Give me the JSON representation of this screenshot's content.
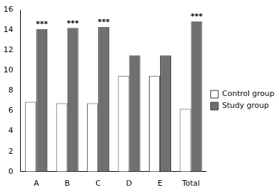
{
  "chart_data": {
    "type": "bar",
    "categories": [
      "A",
      "B",
      "C",
      "D",
      "E",
      "Total"
    ],
    "series": [
      {
        "name": "Control group",
        "color": "#ffffff",
        "values": [
          6.9,
          6.75,
          6.75,
          9.45,
          9.45,
          6.2
        ]
      },
      {
        "name": "Study group",
        "color": "#707070",
        "values": [
          14.1,
          14.2,
          14.3,
          11.5,
          11.5,
          14.85
        ]
      }
    ],
    "ylim": [
      0,
      16
    ],
    "yticks": [
      0,
      2,
      4,
      6,
      8,
      10,
      12,
      14,
      16
    ],
    "grid": false,
    "legend": "right",
    "annotations": [
      {
        "category": "A",
        "series": "Study group",
        "text": "***"
      },
      {
        "category": "B",
        "series": "Study group",
        "text": "***"
      },
      {
        "category": "C",
        "series": "Study group",
        "text": "***"
      },
      {
        "category": "Total",
        "series": "Study group",
        "text": "***"
      }
    ]
  }
}
